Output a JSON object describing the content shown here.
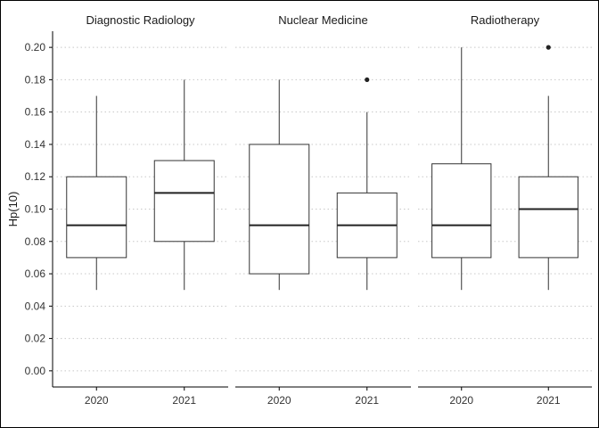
{
  "chart_data": {
    "type": "boxplot",
    "ylabel": "Hp(10)",
    "xlabel": "",
    "ylim": [
      -0.01,
      0.21
    ],
    "yticks": [
      0.0,
      0.02,
      0.04,
      0.06,
      0.08,
      0.1,
      0.12,
      0.14,
      0.16,
      0.18,
      0.2
    ],
    "ytick_labels": [
      "0.00",
      "0.02",
      "0.04",
      "0.06",
      "0.08",
      "0.10",
      "0.12",
      "0.14",
      "0.16",
      "0.18",
      "0.20"
    ],
    "grid": "horizontal-dotted",
    "panels": [
      {
        "title": "Diagnostic Radiology",
        "boxes": [
          {
            "category": "2020",
            "min": 0.05,
            "q1": 0.07,
            "median": 0.09,
            "q3": 0.12,
            "max": 0.17,
            "outliers": []
          },
          {
            "category": "2021",
            "min": 0.05,
            "q1": 0.08,
            "median": 0.11,
            "q3": 0.13,
            "max": 0.18,
            "outliers": []
          }
        ]
      },
      {
        "title": "Nuclear Medicine",
        "boxes": [
          {
            "category": "2020",
            "min": 0.05,
            "q1": 0.06,
            "median": 0.09,
            "q3": 0.14,
            "max": 0.18,
            "outliers": []
          },
          {
            "category": "2021",
            "min": 0.05,
            "q1": 0.07,
            "median": 0.09,
            "q3": 0.11,
            "max": 0.16,
            "outliers": [
              0.18
            ]
          }
        ]
      },
      {
        "title": "Radiotherapy",
        "boxes": [
          {
            "category": "2020",
            "min": 0.05,
            "q1": 0.07,
            "median": 0.09,
            "q3": 0.128,
            "max": 0.2,
            "outliers": []
          },
          {
            "category": "2021",
            "min": 0.05,
            "q1": 0.07,
            "median": 0.1,
            "q3": 0.12,
            "max": 0.17,
            "outliers": [
              0.2
            ]
          }
        ]
      }
    ]
  }
}
